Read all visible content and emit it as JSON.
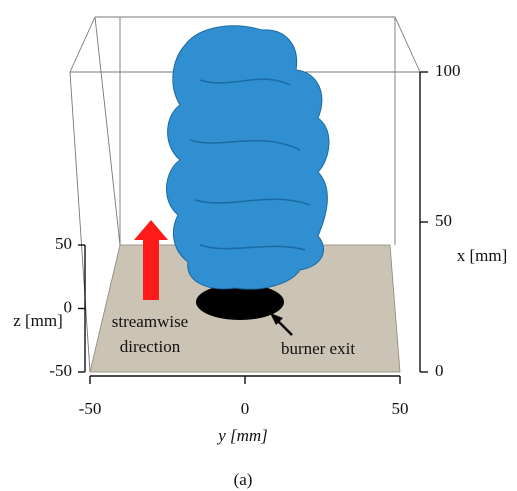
{
  "figure": {
    "y_axis": {
      "label": "y [mm]",
      "ticks": [
        -50,
        0,
        50
      ]
    },
    "z_axis": {
      "label": "z [mm]",
      "ticks": [
        -50,
        0,
        50
      ]
    },
    "x_axis": {
      "label": "x [mm]",
      "ticks": [
        0,
        50,
        100
      ]
    },
    "annotations": {
      "streamwise_1": "streamwise",
      "streamwise_2": "direction",
      "burner": "burner exit"
    },
    "caption": "(a)"
  }
}
